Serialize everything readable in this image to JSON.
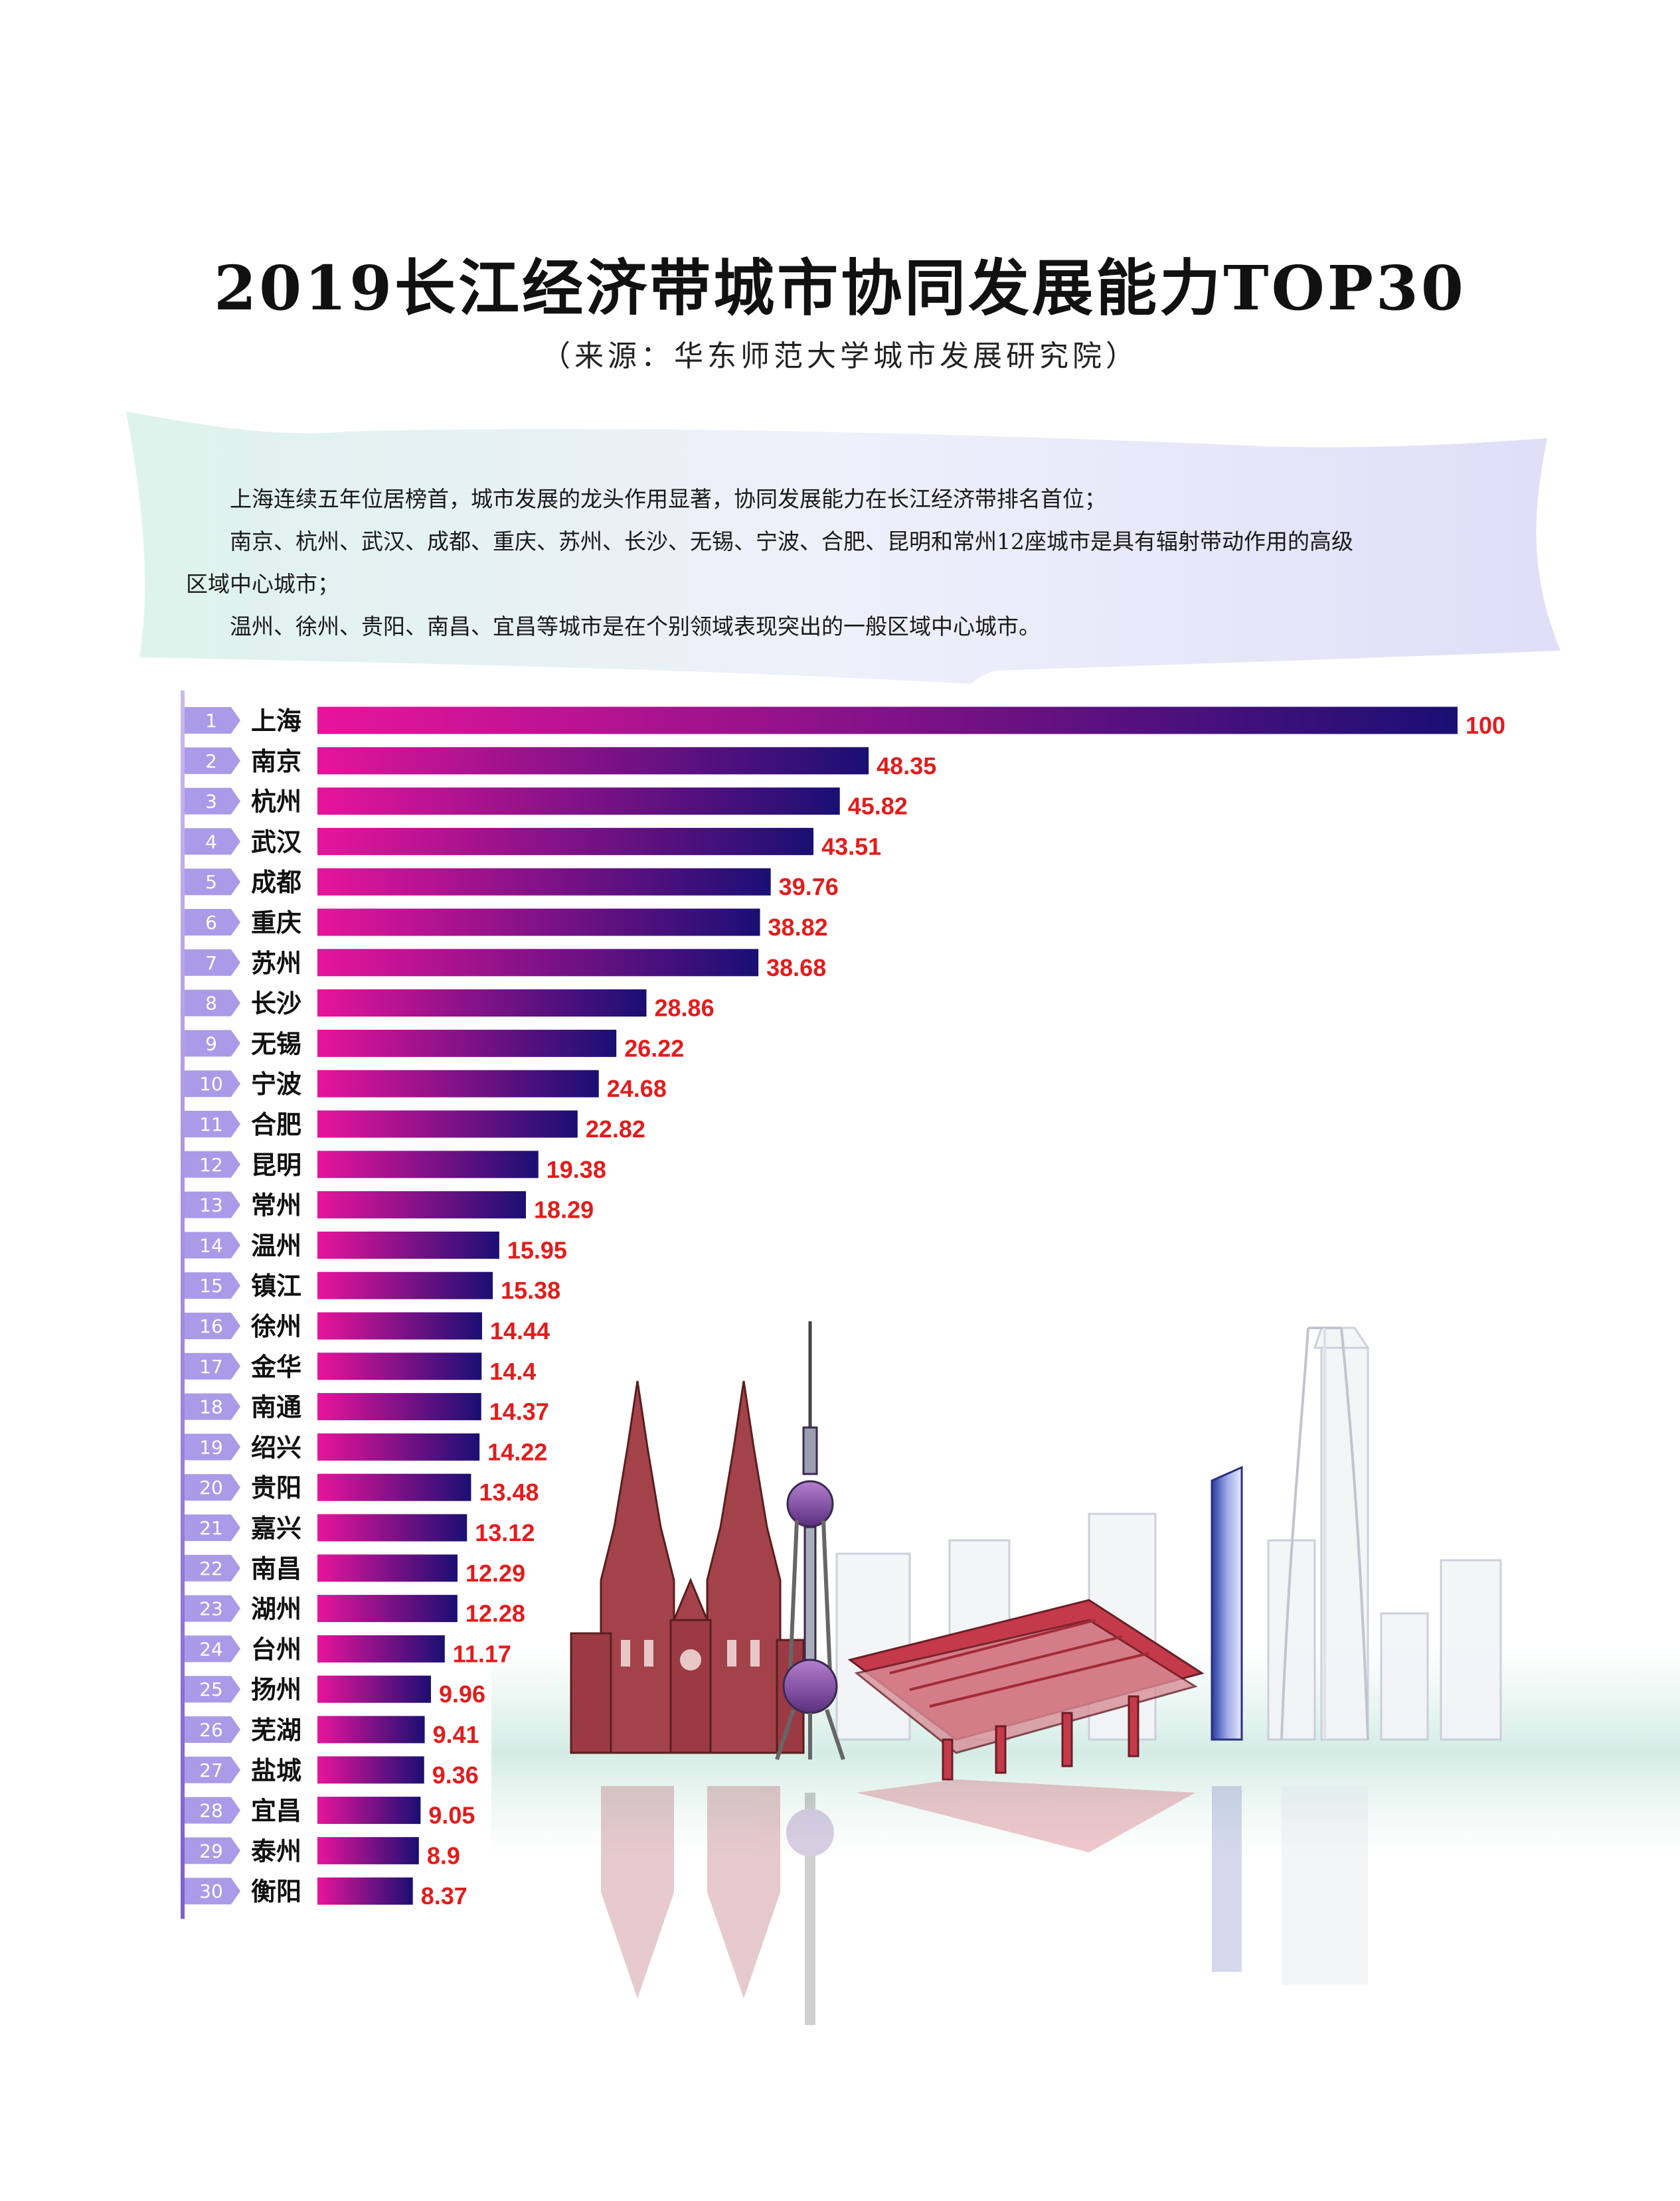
{
  "title": "2019长江经济带城市协同发展能力TOP30",
  "source": "（来源：华东师范大学城市发展研究院）",
  "intro": {
    "line1": "上海连续五年位居榜首，城市发展的龙头作用显著，协同发展能力在长江经济带排名首位；",
    "line2": "南京、杭州、武汉、成都、重庆、苏州、长沙、无锡、宁波、合肥、昆明和常州12座城市是具有辐射带动作用的高级",
    "line2_cont": "区域中心城市；",
    "line3": "温州、徐州、贵阳、南昌、宜昌等城市是在个别领域表现突出的一般区域中心城市。"
  },
  "colors": {
    "bar_start": "#e8149b",
    "bar_end": "#1a0f73",
    "value_label": "#e21c1c",
    "rank_badge": "#a99be8"
  },
  "chart_data": {
    "type": "bar",
    "orientation": "horizontal",
    "ranks": [
      "1",
      "2",
      "3",
      "4",
      "5",
      "6",
      "7",
      "8",
      "9",
      "10",
      "11",
      "12",
      "13",
      "14",
      "15",
      "16",
      "17",
      "18",
      "19",
      "20",
      "21",
      "22",
      "23",
      "24",
      "25",
      "26",
      "27",
      "28",
      "29",
      "30"
    ],
    "categories": [
      "上海",
      "南京",
      "杭州",
      "武汉",
      "成都",
      "重庆",
      "苏州",
      "长沙",
      "无锡",
      "宁波",
      "合肥",
      "昆明",
      "常州",
      "温州",
      "镇江",
      "徐州",
      "金华",
      "南通",
      "绍兴",
      "贵阳",
      "嘉兴",
      "南昌",
      "湖州",
      "台州",
      "扬州",
      "芜湖",
      "盐城",
      "宜昌",
      "泰州",
      "衡阳"
    ],
    "values": [
      100,
      48.35,
      45.82,
      43.51,
      39.76,
      38.82,
      38.68,
      28.86,
      26.22,
      24.68,
      22.82,
      19.38,
      18.29,
      15.95,
      15.38,
      14.44,
      14.4,
      14.37,
      14.22,
      13.48,
      13.12,
      12.29,
      12.28,
      11.17,
      9.96,
      9.41,
      9.36,
      9.05,
      8.9,
      8.37
    ],
    "value_labels": [
      "100",
      "48.35",
      "45.82",
      "43.51",
      "39.76",
      "38.82",
      "38.68",
      "28.86",
      "26.22",
      "24.68",
      "22.82",
      "19.38",
      "18.29",
      "15.95",
      "15.38",
      "14.44",
      "14.4",
      "14.37",
      "14.22",
      "13.48",
      "13.12",
      "12.29",
      "12.28",
      "11.17",
      "9.96",
      "9.41",
      "9.36",
      "9.05",
      "8.9",
      "8.37"
    ],
    "xlim": [
      0,
      100
    ],
    "grid": false,
    "legend": "none"
  }
}
